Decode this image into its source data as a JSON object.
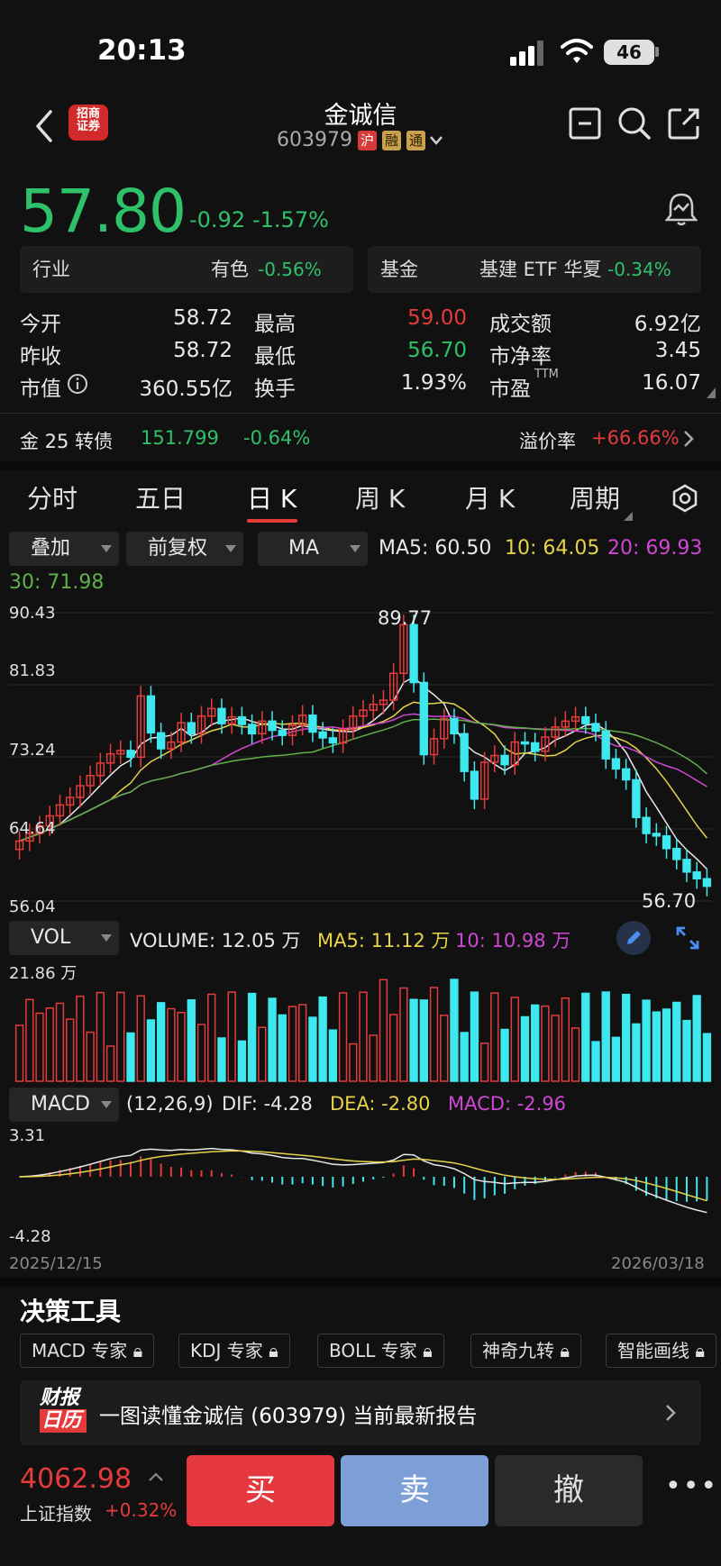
{
  "status": {
    "time": "20:13",
    "battery": "46"
  },
  "header": {
    "title": "金诚信",
    "code": "603979",
    "tags": [
      "沪",
      "融",
      "通"
    ]
  },
  "quote": {
    "price": "57.80",
    "change": "-0.92",
    "change_pct": "-1.57%"
  },
  "industry": {
    "label": "行业",
    "name": "有色",
    "pct": "-0.56%"
  },
  "fund": {
    "label": "基金",
    "name": "基建 ETF 华夏",
    "pct": "-0.34%"
  },
  "stats": {
    "open_label": "今开",
    "open": "58.72",
    "high_label": "最高",
    "high": "59.00",
    "turnover_amt_label": "成交额",
    "turnover_amt": "6.92亿",
    "prev_label": "昨收",
    "prev": "58.72",
    "low_label": "最低",
    "low": "56.70",
    "pb_label": "市净率",
    "pb": "3.45",
    "mcap_label": "市值",
    "mcap": "360.55亿",
    "turnover_label": "换手",
    "turnover": "1.93%",
    "pe_label": "市盈",
    "pe_sup": "TTM",
    "pe": "16.07"
  },
  "bond": {
    "name": "金 25 转债",
    "price": "151.799",
    "pct": "-0.64%",
    "premium_label": "溢价率",
    "premium": "+66.66%"
  },
  "tabs": [
    "分时",
    "五日",
    "日 K",
    "周 K",
    "月 K",
    "周期"
  ],
  "toolbar": {
    "overlay": "叠加",
    "adjust": "前复权",
    "ma": "MA"
  },
  "ma_values": {
    "ma5": "MA5: 60.50",
    "ma10": "10: 64.05",
    "ma20": "20: 69.93",
    "ma30": "30: 71.98"
  },
  "kline": {
    "y_labels": [
      "90.43",
      "81.83",
      "73.24",
      "64.64",
      "56.04"
    ],
    "high_mark": "89.77",
    "low_mark": "56.70"
  },
  "volume": {
    "selector": "VOL",
    "volume": "VOLUME: 12.05 万",
    "ma5": "MA5: 11.12 万",
    "ma10": "10: 10.98 万",
    "max": "21.86 万"
  },
  "macd": {
    "selector": "MACD",
    "params": "(12,26,9)",
    "dif": "DIF: -4.28",
    "dea": "DEA: -2.80",
    "macd": "MACD: -2.96",
    "top": "3.31",
    "bottom": "-4.28"
  },
  "dates": {
    "start": "2025/12/15",
    "end": "2026/03/18"
  },
  "tools": {
    "title": "决策工具",
    "chips": [
      "MACD 专家",
      "KDJ 专家",
      "BOLL 专家",
      "神奇九转",
      "智能画线"
    ]
  },
  "report": {
    "badge_top": "财报",
    "badge_bottom": "日历",
    "text": "一图读懂金诚信 (603979) 当前最新报告"
  },
  "index": {
    "value": "4062.98",
    "name": "上证指数",
    "pct": "+0.32%"
  },
  "actions": {
    "buy": "买",
    "sell": "卖",
    "cancel": "撤"
  },
  "logo_text": "招商证券",
  "colors": {
    "up": "#e53b3b",
    "down": "#2fc06a",
    "cyan": "#3ee8ef",
    "yellow": "#e6d34a",
    "magenta": "#d046d6",
    "green": "#5fb04a"
  }
}
